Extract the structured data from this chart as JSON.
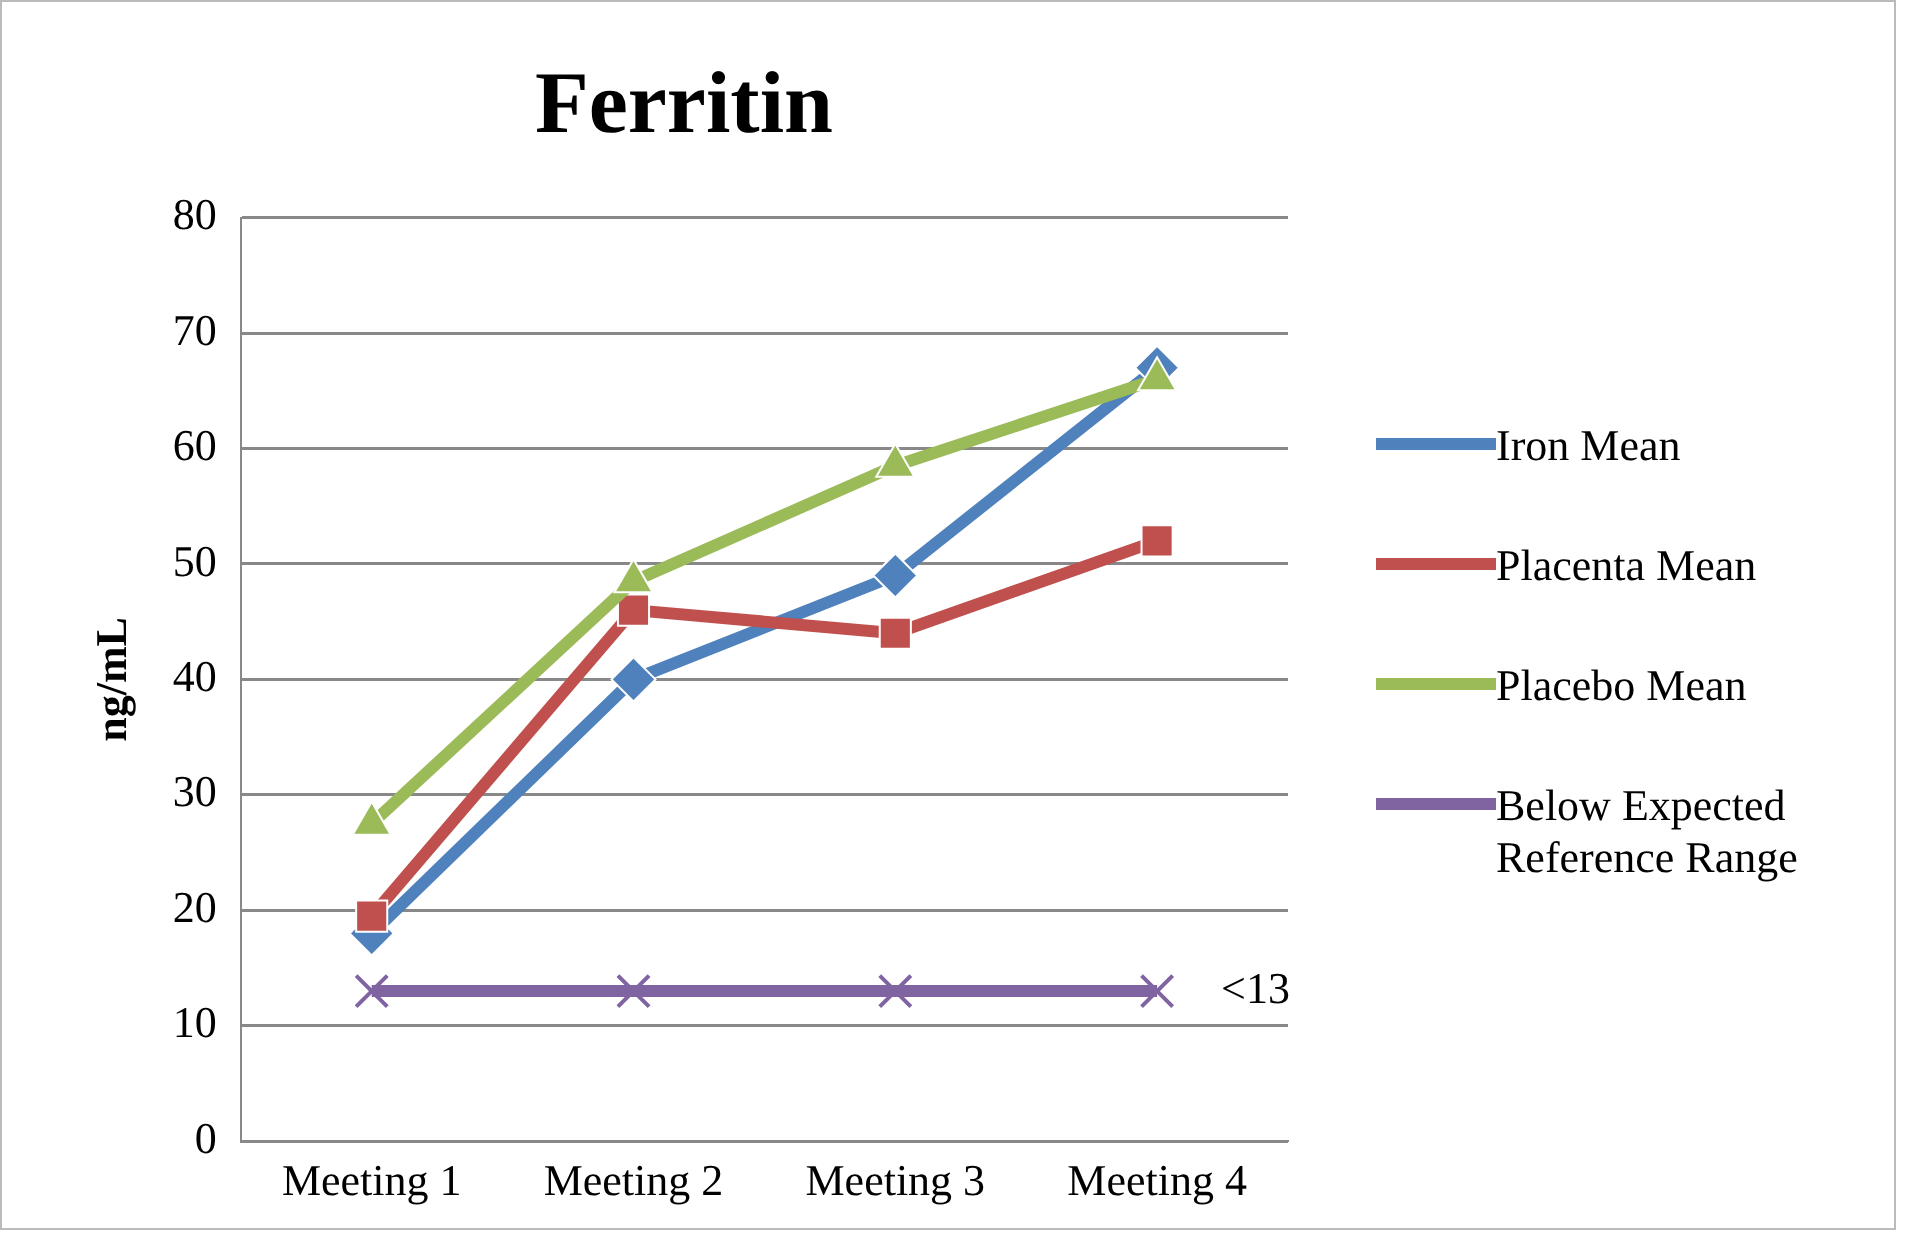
{
  "chart_data": {
    "type": "line",
    "title": "Ferritin",
    "ylabel": "ng/mL",
    "categories": [
      "Meeting 1",
      "Meeting 2",
      "Meeting 3",
      "Meeting 4"
    ],
    "series": [
      {
        "name": "Iron Mean",
        "color": "#4f81bd",
        "marker": "diamond",
        "values": [
          18,
          40,
          49,
          67
        ]
      },
      {
        "name": "Placenta Mean",
        "color": "#c0504d",
        "marker": "square",
        "values": [
          19.5,
          46,
          44,
          52
        ]
      },
      {
        "name": "Placebo Mean",
        "color": "#9bbb59",
        "marker": "triangle",
        "values": [
          27.5,
          48.5,
          58.5,
          66
        ]
      },
      {
        "name": "Below Expected Reference Range",
        "color": "#8064a2",
        "marker": "cross",
        "values": [
          13,
          13,
          13,
          13
        ]
      }
    ],
    "annotations": [
      {
        "text": "<13",
        "x": "Meeting 4",
        "y": 13
      }
    ],
    "ylim": [
      0,
      80
    ],
    "yticks": [
      0,
      10,
      20,
      30,
      40,
      50,
      60,
      70,
      80
    ],
    "grid": "y",
    "legend": "right"
  }
}
